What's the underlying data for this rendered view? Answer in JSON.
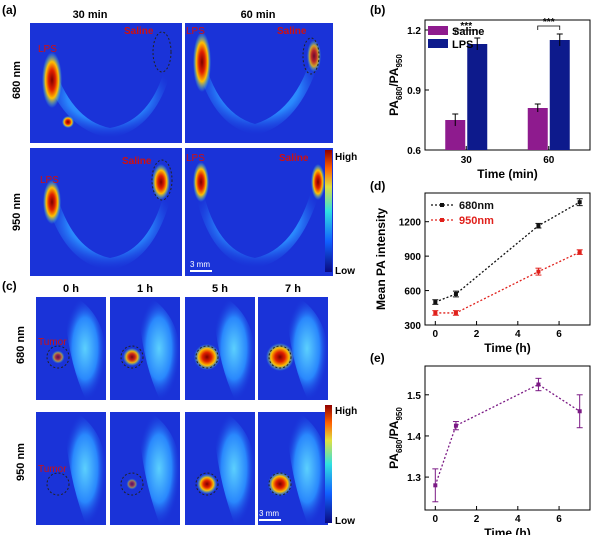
{
  "panels": {
    "a": {
      "label": "(a)",
      "col_headers": [
        "30 min",
        "60 min"
      ],
      "row_labels": [
        "680 nm",
        "950 nm"
      ],
      "region_labels": {
        "lps": "LPS",
        "saline": "Saline"
      },
      "colorbar": {
        "high": "High",
        "low": "Low"
      },
      "scale_bar": "3 mm"
    },
    "b": {
      "label": "(b)"
    },
    "c": {
      "label": "(c)",
      "col_headers": [
        "0 h",
        "1 h",
        "5 h",
        "7 h"
      ],
      "row_labels": [
        "680 nm",
        "950 nm"
      ],
      "region_label": "Tumor",
      "colorbar": {
        "high": "High",
        "low": "Low"
      },
      "scale_bar": "3 mm",
      "tumor_intensity": {
        "680 nm": [
          0.25,
          0.5,
          0.9,
          1.0
        ],
        "950 nm": [
          0.0,
          0.15,
          0.6,
          0.8
        ]
      }
    },
    "d": {
      "label": "(d)"
    },
    "e": {
      "label": "(e)"
    }
  },
  "chart_data": [
    {
      "panel": "b",
      "type": "bar",
      "categories": [
        "30",
        "60"
      ],
      "series": [
        {
          "name": "Saline",
          "values": [
            0.75,
            0.81
          ],
          "errors": [
            0.03,
            0.02
          ],
          "color": "#8e1b8e"
        },
        {
          "name": "LPS",
          "values": [
            1.13,
            1.15
          ],
          "errors": [
            0.03,
            0.03
          ],
          "color": "#0d1a8c"
        }
      ],
      "significance": [
        "***",
        "***"
      ],
      "xlabel": "Time (min)",
      "ylabel_main": "PA",
      "ylabel_sub1": "680",
      "ylabel_mid": "/PA",
      "ylabel_sub2": "950",
      "ylim": [
        0.6,
        1.25
      ],
      "yticks": [
        "0.6",
        "0.9",
        "1.2"
      ],
      "legend": "top-left"
    },
    {
      "panel": "d",
      "type": "line",
      "series": [
        {
          "name": "680nm",
          "x": [
            0,
            1,
            5,
            7
          ],
          "y": [
            500,
            570,
            1165,
            1370
          ],
          "errors": [
            20,
            25,
            20,
            30
          ],
          "color": "#111111"
        },
        {
          "name": "950nm",
          "x": [
            0,
            1,
            5,
            7
          ],
          "y": [
            405,
            405,
            765,
            935
          ],
          "errors": [
            20,
            20,
            30,
            20
          ],
          "color": "#e0201b"
        }
      ],
      "xlabel": "Time (h)",
      "ylabel": "Mean PA intensity",
      "xlim": [
        -0.5,
        7.5
      ],
      "ylim": [
        300,
        1450
      ],
      "xticks": [
        "0",
        "2",
        "4",
        "6"
      ],
      "yticks": [
        "300",
        "600",
        "900",
        "1200"
      ],
      "legend": "top-left"
    },
    {
      "panel": "e",
      "type": "line",
      "series": [
        {
          "name": "",
          "x": [
            0,
            1,
            5,
            7
          ],
          "y": [
            1.28,
            1.425,
            1.525,
            1.46
          ],
          "errors": [
            0.04,
            0.01,
            0.015,
            0.04
          ],
          "color": "#7b1a85"
        }
      ],
      "xlabel": "Time (h)",
      "ylabel_main": "PA",
      "ylabel_sub1": "680",
      "ylabel_mid": "/PA",
      "ylabel_sub2": "950",
      "xlim": [
        -0.5,
        7.5
      ],
      "ylim": [
        1.22,
        1.57
      ],
      "xticks": [
        "0",
        "2",
        "4",
        "6"
      ],
      "yticks": [
        "1.3",
        "1.4",
        "1.5"
      ]
    }
  ]
}
